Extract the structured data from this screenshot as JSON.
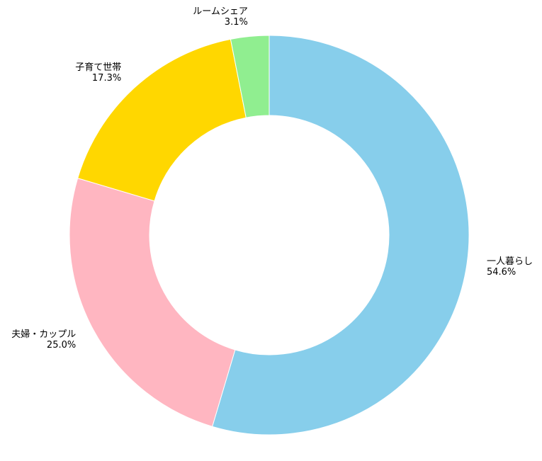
{
  "chart_data": {
    "type": "pie",
    "variant": "donut",
    "start_angle_deg": 90,
    "direction": "clockwise",
    "slices": [
      {
        "label": "一人暮らし",
        "value": 54.6,
        "display": "54.6%",
        "color": "#87CEEB"
      },
      {
        "label": "夫婦・カップル",
        "value": 25.0,
        "display": "25.0%",
        "color": "#FFB6C1"
      },
      {
        "label": "子育て世帯",
        "value": 17.3,
        "display": "17.3%",
        "color": "#FFD700"
      },
      {
        "label": "ルームシェア",
        "value": 3.1,
        "display": "3.1%",
        "color": "#90EE90"
      }
    ]
  }
}
